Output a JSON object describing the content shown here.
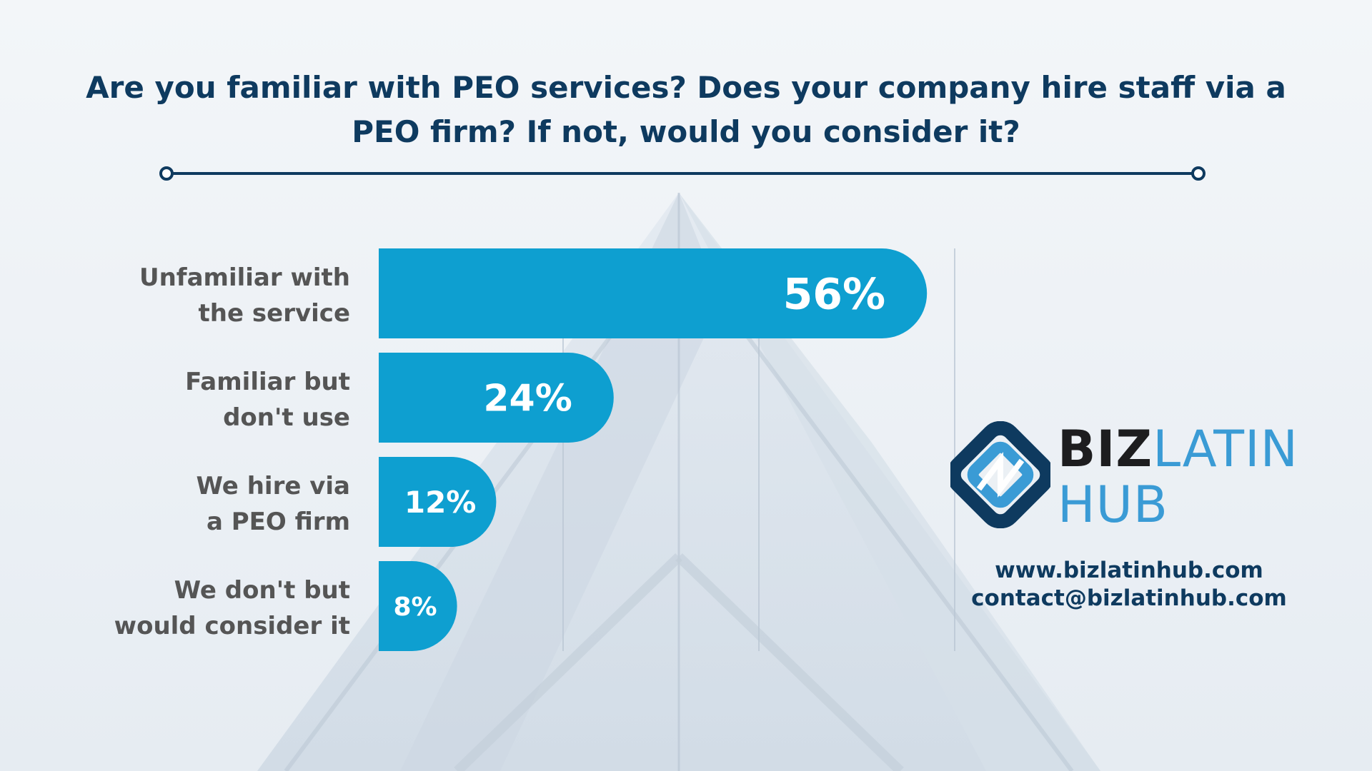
{
  "title": "Are you familiar with PEO services? Does your company hire staff via a PEO firm? If not, would you consider it?",
  "chart_data": {
    "type": "bar",
    "orientation": "horizontal",
    "categories": [
      "Unfamiliar with the service",
      "Familiar but don't use",
      "We hire via a PEO firm",
      "We don't but would consider it"
    ],
    "values": [
      56,
      24,
      12,
      8
    ],
    "value_labels": [
      "56%",
      "24%",
      "12%",
      "8%"
    ],
    "unit": "%",
    "xlim": [
      0,
      60
    ],
    "grid": true,
    "bar_color": "#0e9fd0"
  },
  "logo": {
    "word1": "BIZ",
    "word2": "LATIN",
    "word3": "HUB"
  },
  "contact": {
    "website": "www.bizlatinhub.com",
    "email": "contact@bizlatinhub.com"
  },
  "colors": {
    "title": "#0e3a5f",
    "label": "#555555",
    "bar": "#0e9fd0",
    "accent": "#3a9bd5"
  }
}
